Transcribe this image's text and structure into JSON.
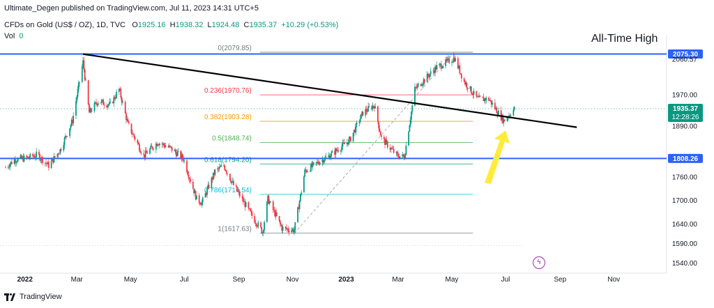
{
  "header": {
    "published": "Ultimate_Degen published on TradingView.com, Jul 11, 2023 14:31 UTC+5",
    "symbol": "CFDs on Gold (US$ / OZ), 1D, TVC",
    "open_label": "O",
    "open": "1925.16",
    "high_label": "H",
    "high": "1938.32",
    "low_label": "L",
    "low": "1924.48",
    "close_label": "C",
    "close": "1935.37",
    "change": "+10.29 (+0.53%)",
    "vol_label": "Vol",
    "vol": "0"
  },
  "footer": {
    "brand": "TradingView"
  },
  "annotations": {
    "ath": "All-Time High"
  },
  "colors": {
    "up": "#089981",
    "down": "#f23645",
    "level": "#2962ff",
    "trend": "#000000",
    "arrow": "#ffeb3b"
  },
  "chart_data": {
    "type": "candlestick",
    "title": "CFDs on Gold (US$ / OZ), 1D, TVC",
    "x_ticks": [
      "2022",
      "Mar",
      "May",
      "Jul",
      "Sep",
      "Nov",
      "2023",
      "Mar",
      "May",
      "Jul",
      "Sep",
      "Nov"
    ],
    "y_ticks": [
      1540,
      1590,
      1640,
      1700,
      1760,
      1890,
      1970
    ],
    "ylim": [
      1515,
      2110
    ],
    "price_labels": [
      {
        "value": "2075.30",
        "color": "#2962ff",
        "kind": "level"
      },
      {
        "value": "2060.57",
        "color": "",
        "kind": "text"
      },
      {
        "value": "1935.37",
        "sub": "12:28:26",
        "color": "#089981",
        "kind": "current"
      },
      {
        "value": "1808.26",
        "color": "#2962ff",
        "kind": "level"
      }
    ],
    "horizontal_levels": [
      2075.3,
      1808.26
    ],
    "fibonacci": [
      {
        "ratio": "0",
        "price": "2079.85",
        "value": 2079.85,
        "color": "#787b86"
      },
      {
        "ratio": "0.236",
        "price": "1970.76",
        "value": 1970.76,
        "color": "#f23645"
      },
      {
        "ratio": "0.382",
        "price": "1903.28",
        "value": 1903.28,
        "color": "#ff9800"
      },
      {
        "ratio": "0.5",
        "price": "1848.74",
        "value": 1848.74,
        "color": "#4caf50"
      },
      {
        "ratio": "0.618",
        "price": "1794.20",
        "value": 1794.2,
        "color": "#089981"
      },
      {
        "ratio": "0.786",
        "price": "1716.54",
        "value": 1716.54,
        "color": "#00bcd4"
      },
      {
        "ratio": "1",
        "price": "1617.63",
        "value": 1617.63,
        "color": "#787b86"
      }
    ],
    "trendline": {
      "start": {
        "date": "2022-03-08",
        "price": 2075
      },
      "end": {
        "date": "2023-09-20",
        "price": 1888
      }
    },
    "close_path": [
      [
        "2021-12-10",
        1785
      ],
      [
        "2021-12-20",
        1805
      ],
      [
        "2022-01-05",
        1810
      ],
      [
        "2022-01-15",
        1818
      ],
      [
        "2022-01-28",
        1790
      ],
      [
        "2022-02-10",
        1830
      ],
      [
        "2022-02-24",
        1905
      ],
      [
        "2022-03-08",
        2055
      ],
      [
        "2022-03-15",
        1925
      ],
      [
        "2022-03-25",
        1955
      ],
      [
        "2022-04-08",
        1945
      ],
      [
        "2022-04-18",
        1985
      ],
      [
        "2022-04-28",
        1895
      ],
      [
        "2022-05-16",
        1815
      ],
      [
        "2022-06-01",
        1850
      ],
      [
        "2022-06-15",
        1835
      ],
      [
        "2022-06-30",
        1808
      ],
      [
        "2022-07-15",
        1705
      ],
      [
        "2022-07-21",
        1695
      ],
      [
        "2022-08-05",
        1775
      ],
      [
        "2022-08-15",
        1790
      ],
      [
        "2022-08-26",
        1740
      ],
      [
        "2022-09-15",
        1665
      ],
      [
        "2022-09-28",
        1620
      ],
      [
        "2022-10-04",
        1705
      ],
      [
        "2022-10-20",
        1630
      ],
      [
        "2022-11-03",
        1625
      ],
      [
        "2022-11-15",
        1775
      ],
      [
        "2022-12-01",
        1800
      ],
      [
        "2022-12-13",
        1815
      ],
      [
        "2023-01-05",
        1855
      ],
      [
        "2023-01-20",
        1925
      ],
      [
        "2023-02-02",
        1945
      ],
      [
        "2023-02-10",
        1860
      ],
      [
        "2023-02-28",
        1815
      ],
      [
        "2023-03-08",
        1812
      ],
      [
        "2023-03-20",
        1985
      ],
      [
        "2023-04-13",
        2040
      ],
      [
        "2023-05-04",
        2065
      ],
      [
        "2023-05-15",
        2005
      ],
      [
        "2023-05-30",
        1960
      ],
      [
        "2023-06-12",
        1960
      ],
      [
        "2023-06-29",
        1905
      ],
      [
        "2023-07-11",
        1935
      ]
    ]
  }
}
